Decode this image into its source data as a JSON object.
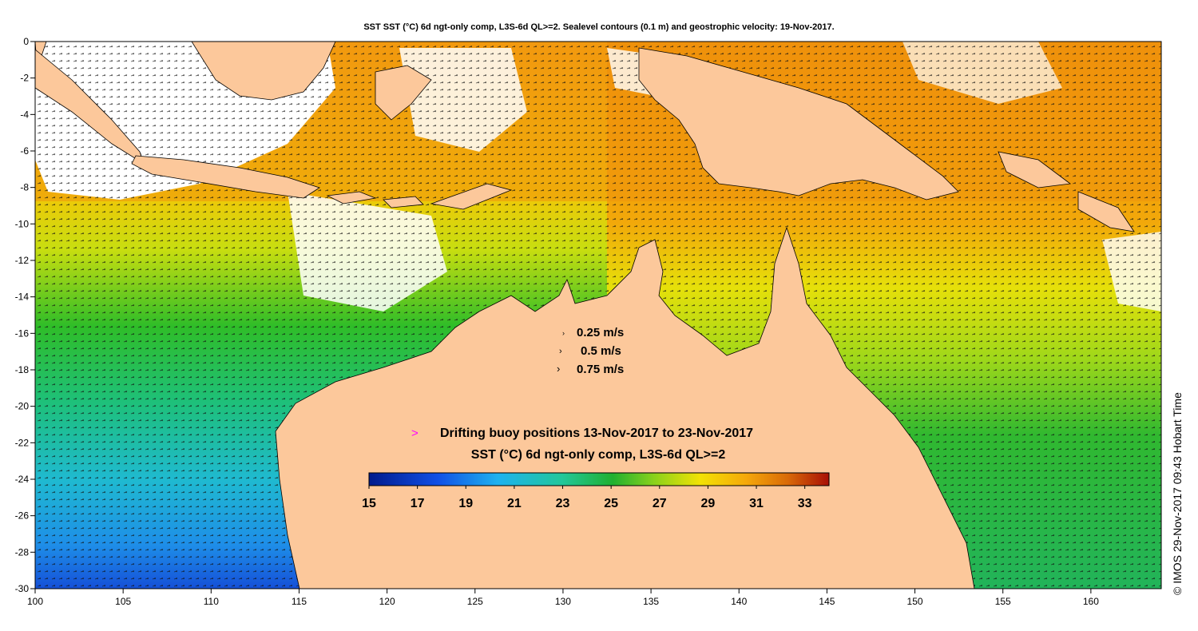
{
  "title": "SST SST (°C) 6d ngt-only comp, L3S-6d QL>=2. Sealevel contours (0.1 m) and geostrophic velocity: 19-Nov-2017.",
  "copyright": "© IMOS 29-Nov-2017 09:43 Hobart Time",
  "axes": {
    "x_ticks": [
      "100",
      "105",
      "110",
      "115",
      "120",
      "125",
      "130",
      "135",
      "140",
      "145",
      "150",
      "155",
      "160"
    ],
    "y_ticks": [
      "0",
      "-2",
      "-4",
      "-6",
      "-8",
      "-10",
      "-12",
      "-14",
      "-16",
      "-18",
      "-20",
      "-22",
      "-24",
      "-26",
      "-28",
      "-30"
    ],
    "lon_range": [
      100,
      164
    ],
    "lat_range": [
      -30,
      0
    ]
  },
  "velocity_legend": [
    {
      "label": "0.25 m/s"
    },
    {
      "label": "0.5 m/s"
    },
    {
      "label": "0.75 m/s"
    }
  ],
  "buoy_legend": {
    "symbol": ">",
    "text": "Drifting buoy positions 13-Nov-2017 to 23-Nov-2017",
    "color": "#ff00ff"
  },
  "colorbar": {
    "title": "SST (°C) 6d ngt-only comp, L3S-6d QL>=2",
    "range": [
      15,
      34
    ],
    "tick_labels": [
      "15",
      "17",
      "19",
      "21",
      "23",
      "25",
      "27",
      "29",
      "31",
      "33"
    ]
  },
  "colors": {
    "land": "#fcc89b",
    "ocean_warm": "#f59a0c",
    "ocean_cool": "#2f8fe0"
  }
}
